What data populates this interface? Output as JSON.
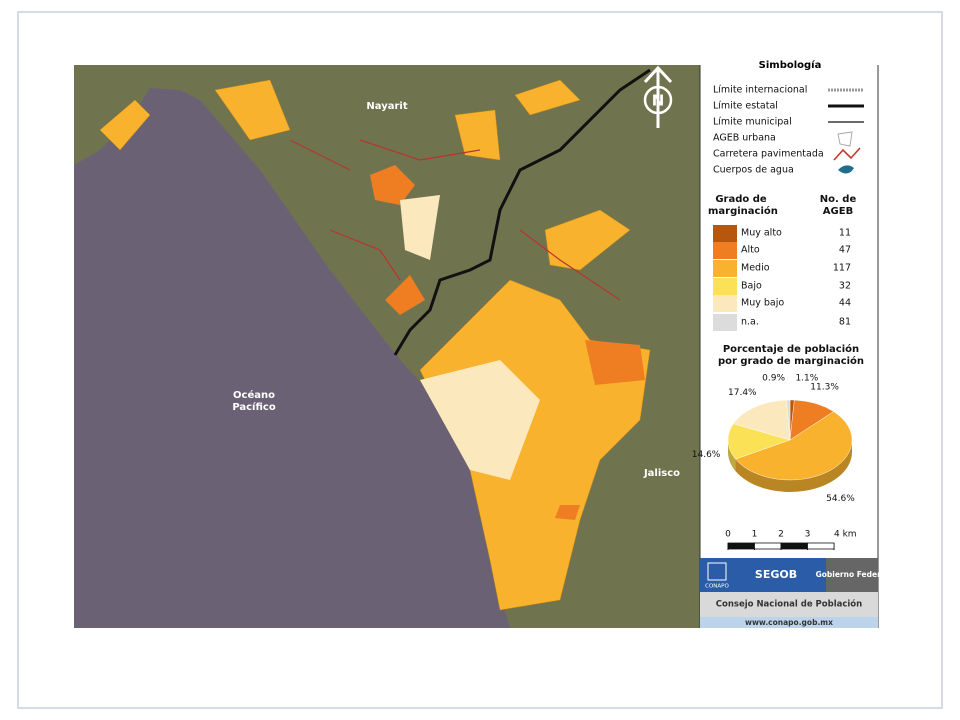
{
  "map": {
    "labels": [
      "Nayarit",
      "Océano Pacífico",
      "Jalisco"
    ]
  },
  "legend": {
    "title": "Simbología",
    "items": [
      "Límite internacional",
      "Límite estatal",
      "Límite municipal",
      "AGEB urbana",
      "Carretera pavimentada",
      "Cuerpos de agua"
    ]
  },
  "marginalization": {
    "headers": [
      "Grado de marginación",
      "No. de AGEB"
    ],
    "rows": [
      {
        "label": "Muy alto",
        "color": "#b5570f",
        "count": 11
      },
      {
        "label": "Alto",
        "color": "#ef7d22",
        "count": 47
      },
      {
        "label": "Medio",
        "color": "#f8b22e",
        "count": 117
      },
      {
        "label": "Bajo",
        "color": "#fbe156",
        "count": 32
      },
      {
        "label": "Muy bajo",
        "color": "#fbe9bd",
        "count": 44
      },
      {
        "label": "n.a.",
        "color": "#dcdcdc",
        "count": 81
      }
    ]
  },
  "pie": {
    "title": "Porcentaje de población por grado de marginación",
    "values": [
      1.1,
      11.3,
      54.6,
      14.6,
      17.4,
      0.9
    ],
    "value_labels": [
      "1.1%",
      "11.3%",
      "54.6%",
      "14.6%",
      "17.4%",
      "0.9%"
    ]
  },
  "scale": {
    "ticks": [
      0,
      1,
      2,
      3,
      {
        "value": 4,
        "label": "4 km"
      }
    ]
  },
  "footer": {
    "logo": "CONAPO",
    "segob": "SEGOB",
    "gobierno": "Gobierno Federal",
    "institution": "Consejo Nacional de Población",
    "url": "www.conapo.gob.mx"
  }
}
